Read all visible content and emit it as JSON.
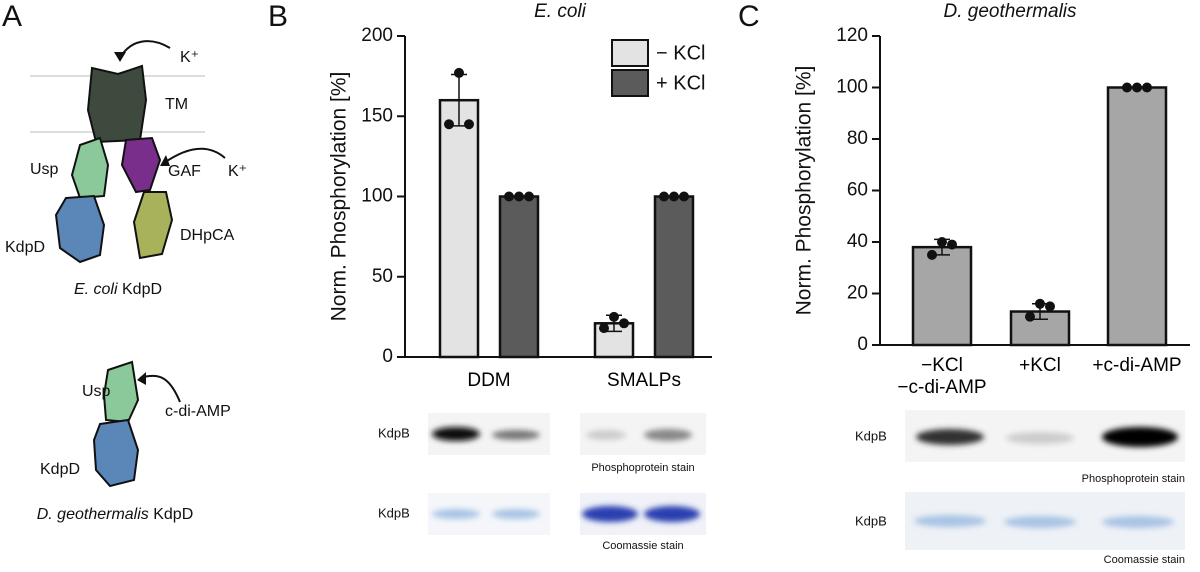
{
  "panel_labels": [
    "A",
    "B",
    "C"
  ],
  "diagram_a": {
    "top": {
      "labels": [
        "K⁺",
        "TM",
        "Usp",
        "GAF",
        "K⁺",
        "KdpD",
        "DHpCA"
      ],
      "caption_italic": "E. coli",
      "caption": " KdpD"
    },
    "bottom": {
      "labels": [
        "Usp",
        "c-di-AMP",
        "KdpD"
      ],
      "caption_italic": "D. geothermalis",
      "caption": " KdpD"
    }
  },
  "chart_data": [
    {
      "type": "bar",
      "title": "E. coli",
      "y_label": "Norm. Phosphorylation [%]",
      "categories": [
        "DDM",
        "SMALPs"
      ],
      "series": [
        {
          "name": "− KCl",
          "color": "#e3e3e3",
          "values": [
            160,
            21
          ],
          "errors": [
            16,
            5
          ],
          "points": [
            [
              145,
              177,
              145
            ],
            [
              18,
              25,
              21
            ]
          ]
        },
        {
          "name": "+ KCl",
          "color": "#5b5b5b",
          "values": [
            100,
            100
          ],
          "errors": [
            0,
            0
          ],
          "points": [
            [
              100,
              100,
              100
            ],
            [
              100,
              100,
              100
            ]
          ]
        }
      ],
      "ylim": [
        0,
        200
      ],
      "yticks": [
        0,
        50,
        100,
        150,
        200
      ],
      "legend": "upper right"
    },
    {
      "type": "bar",
      "title": "D. geothermalis",
      "y_label": "Norm. Phosphorylation [%]",
      "categories": [
        "−KCl\n−c-di-AMP",
        "+KCl",
        "+c-di-AMP"
      ],
      "series": [
        {
          "color": "#a6a6a6",
          "values": [
            38,
            13,
            100
          ],
          "errors": [
            3,
            3,
            0
          ],
          "points": [
            [
              35,
              40,
              39
            ],
            [
              11,
              16,
              15
            ],
            [
              100,
              100,
              100
            ]
          ]
        }
      ],
      "ylim": [
        0,
        120
      ],
      "yticks": [
        0,
        20,
        40,
        60,
        80,
        100,
        120
      ]
    }
  ],
  "gels": [
    {
      "rows": [
        {
          "label": "KdpB",
          "stain": "Phosphoprotein stain"
        },
        {
          "label": "KdpB",
          "stain": "Coomassie stain"
        }
      ]
    },
    {
      "rows": [
        {
          "label": "KdpB",
          "stain": "Phosphoprotein stain"
        },
        {
          "label": "KdpB",
          "stain": "Coomassie stain"
        }
      ]
    }
  ]
}
